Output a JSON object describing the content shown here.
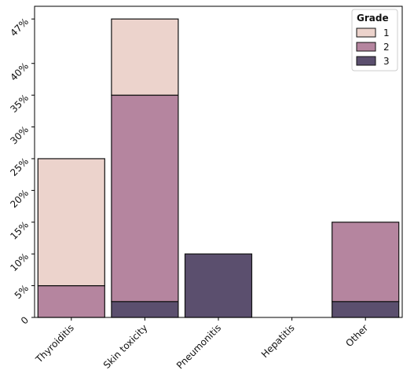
{
  "chart_data": {
    "type": "bar",
    "stacked": true,
    "categories": [
      "Thyroiditis",
      "Skin toxicity",
      "Pneumonitis",
      "Hepatitis",
      "Other"
    ],
    "series": [
      {
        "name": "1",
        "values": [
          20,
          12,
          0,
          0,
          0
        ],
        "color": "#ecd3cc"
      },
      {
        "name": "2",
        "values": [
          5,
          32.5,
          0,
          0,
          12.5
        ],
        "color": "#b5859f"
      },
      {
        "name": "3",
        "values": [
          0,
          2.5,
          10,
          0,
          2.5
        ],
        "color": "#5b4f6e"
      }
    ],
    "stack_order": [
      "3",
      "2",
      "1"
    ],
    "yticks": [
      0,
      5,
      10,
      15,
      20,
      25,
      30,
      35,
      40,
      47
    ],
    "ytick_labels": [
      "0",
      "5%",
      "10%",
      "15%",
      "20%",
      "25%",
      "30%",
      "35%",
      "40%",
      "47%"
    ],
    "ylim": [
      0,
      49
    ],
    "legend": {
      "title": "Grade",
      "position": "top-right",
      "entries": [
        "1",
        "2",
        "3"
      ]
    },
    "grid": false,
    "title": "",
    "xlabel": "",
    "ylabel": ""
  }
}
